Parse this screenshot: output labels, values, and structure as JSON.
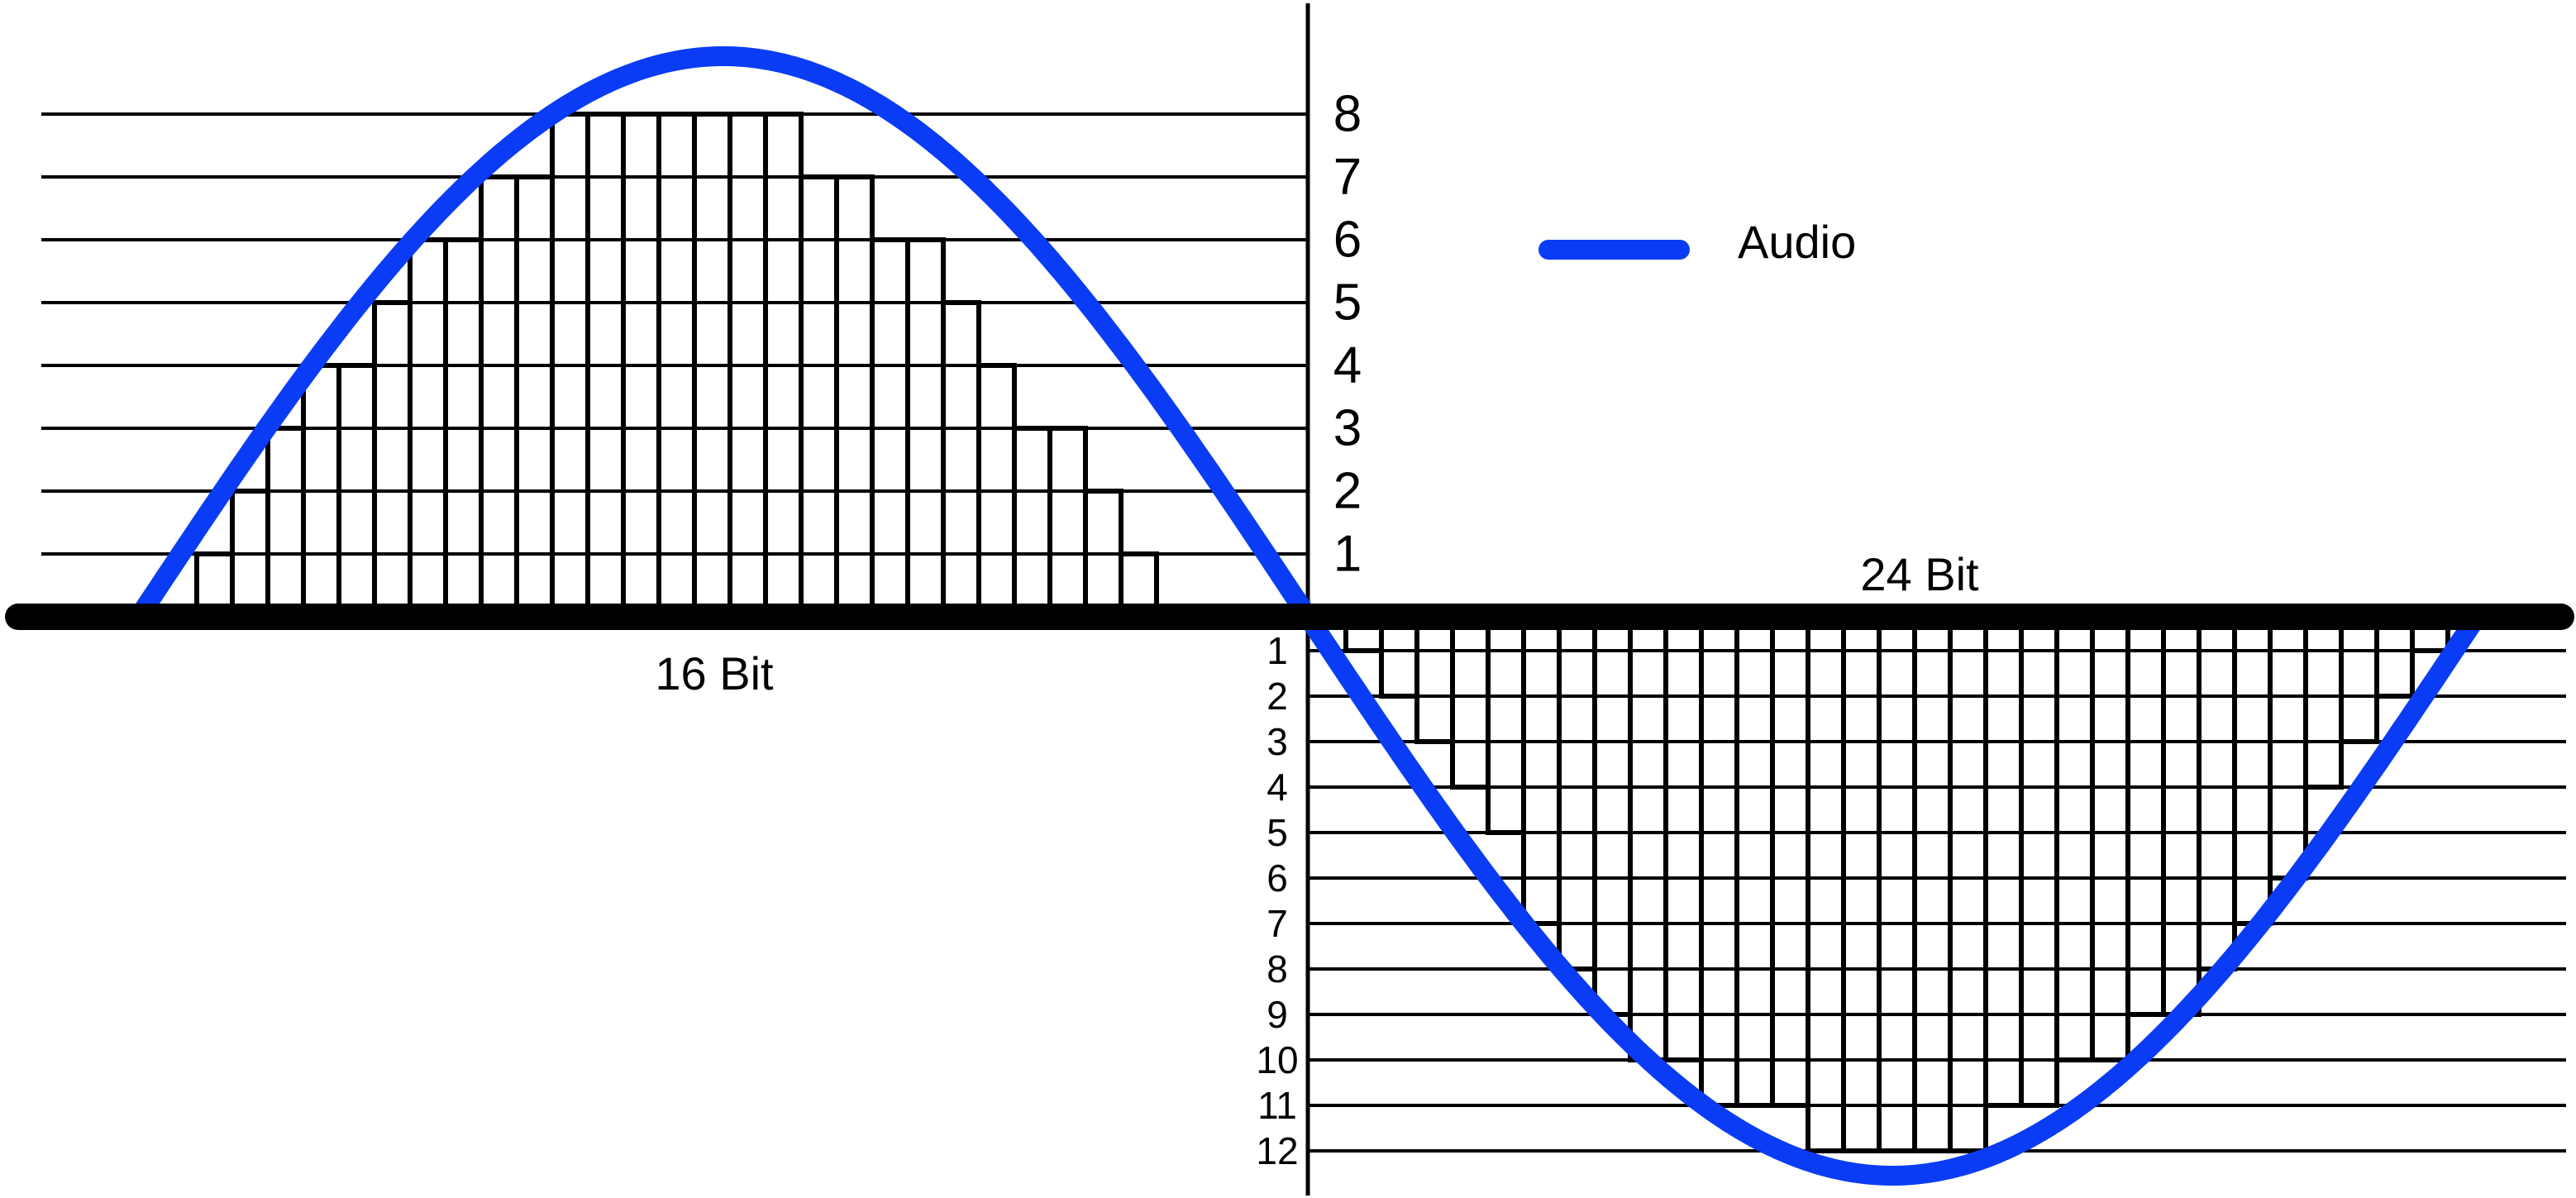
{
  "legend": {
    "label": "Audio"
  },
  "colors": {
    "audio": "#0a3cf5",
    "ink": "#000000",
    "background": "#ffffff"
  },
  "upper": {
    "caption": "16 Bit",
    "level_labels": [
      "1",
      "2",
      "3",
      "4",
      "5",
      "6",
      "7",
      "8"
    ],
    "sample_levels": [
      1,
      2,
      3,
      4,
      4,
      5,
      6,
      6,
      7,
      7,
      8,
      8,
      8,
      8,
      8,
      8,
      8,
      7,
      7,
      6,
      6,
      5,
      4,
      3,
      3,
      2,
      1
    ]
  },
  "lower": {
    "caption": "24 Bit",
    "level_labels": [
      "1",
      "2",
      "3",
      "4",
      "5",
      "6",
      "7",
      "8",
      "9",
      "10",
      "11",
      "12"
    ],
    "sample_levels": [
      1,
      2,
      3,
      4,
      5,
      7,
      8,
      9,
      10,
      10,
      11,
      11,
      11,
      12,
      12,
      12,
      12,
      12,
      11,
      11,
      10,
      10,
      9,
      9,
      8,
      7,
      6,
      4,
      3,
      2,
      1
    ]
  }
}
